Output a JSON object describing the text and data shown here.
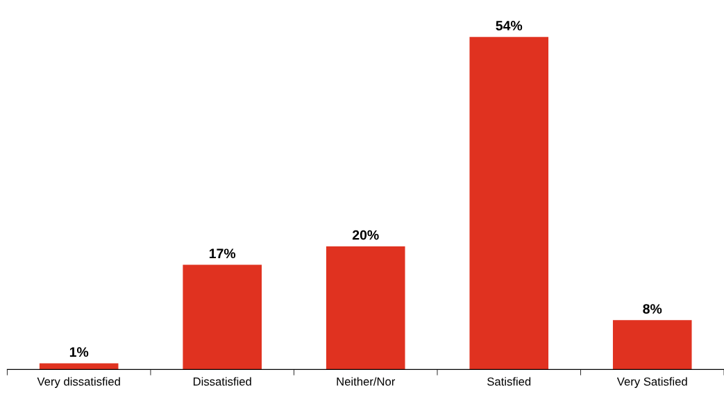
{
  "chart_data": {
    "type": "bar",
    "categories": [
      "Very dissatisfied",
      "Dissatisfied",
      "Neither/Nor",
      "Satisfied",
      "Very Satisfied"
    ],
    "values": [
      1,
      17,
      20,
      54,
      8
    ],
    "value_labels": [
      "1%",
      "17%",
      "20%",
      "54%",
      "8%"
    ],
    "color": "#e03220",
    "grid": false,
    "legend": false
  }
}
